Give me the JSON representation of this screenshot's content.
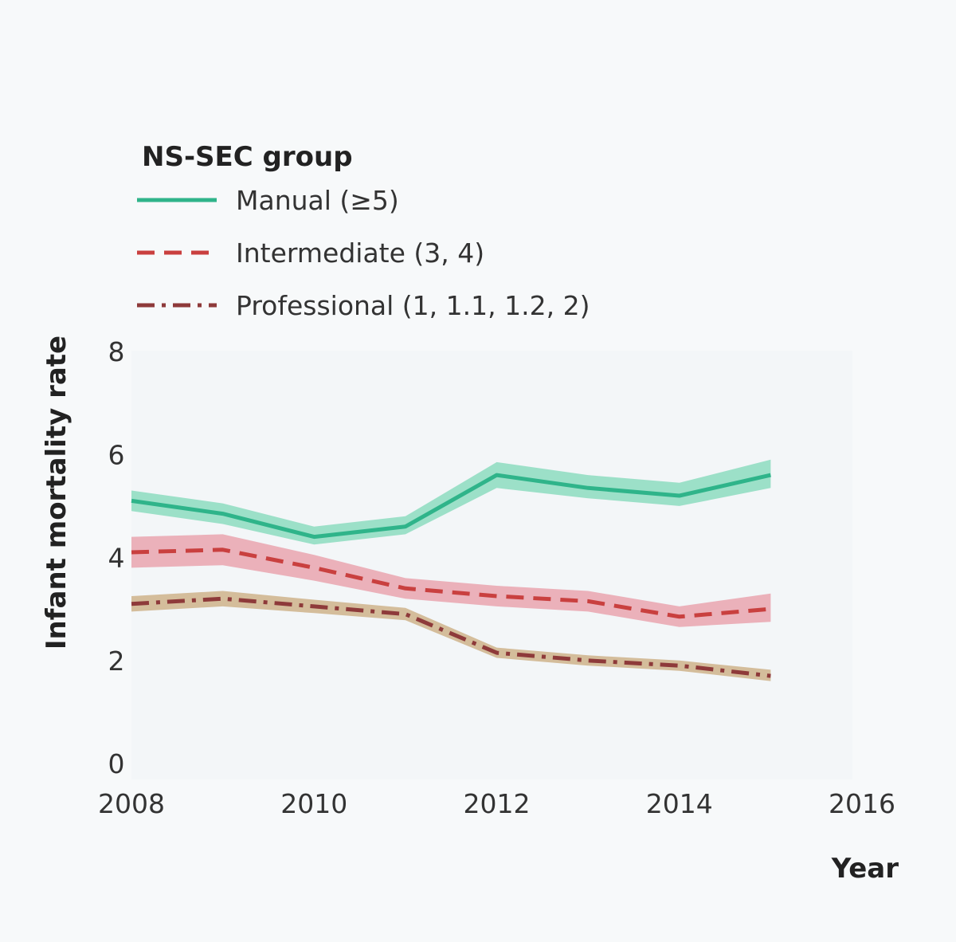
{
  "chart_data": {
    "type": "line",
    "xlabel": "Year",
    "ylabel": "Infant mortality rate",
    "xlim": [
      2008,
      2016
    ],
    "ylim": [
      0,
      8
    ],
    "x_ticks": [
      "2008",
      "2010",
      "2012",
      "2014",
      "2016"
    ],
    "y_ticks": [
      "0",
      "2",
      "4",
      "6",
      "8"
    ],
    "legend": {
      "title": "NS-SEC group",
      "position": "top-left"
    },
    "x": [
      2008,
      2009,
      2010,
      2011,
      2012,
      2013,
      2014,
      2015
    ],
    "series": [
      {
        "name": "Manual (≥5)",
        "style": "solid",
        "color": "#2fb48a",
        "band_color": "#7fd8b8",
        "values": [
          5.1,
          4.85,
          4.4,
          4.6,
          5.6,
          5.35,
          5.2,
          5.6
        ],
        "lower": [
          4.9,
          4.65,
          4.25,
          4.45,
          5.35,
          5.15,
          5.0,
          5.35
        ],
        "upper": [
          5.3,
          5.05,
          4.6,
          4.8,
          5.85,
          5.6,
          5.45,
          5.9
        ]
      },
      {
        "name": "Intermediate (3, 4)",
        "style": "dashed",
        "color": "#c9403f",
        "band_color": "#e89aa6",
        "values": [
          4.1,
          4.15,
          3.8,
          3.4,
          3.25,
          3.15,
          2.85,
          3.0
        ],
        "lower": [
          3.8,
          3.85,
          3.55,
          3.2,
          3.05,
          2.95,
          2.65,
          2.75
        ],
        "upper": [
          4.4,
          4.45,
          4.05,
          3.6,
          3.45,
          3.35,
          3.05,
          3.3
        ]
      },
      {
        "name": "Professional (1, 1.1, 1.2, 2)",
        "style": "dashdot",
        "color": "#8e3a3a",
        "band_color": "#c9aa7c",
        "values": [
          3.1,
          3.2,
          3.05,
          2.9,
          2.15,
          2.0,
          1.9,
          1.7
        ],
        "lower": [
          2.95,
          3.05,
          2.92,
          2.78,
          2.05,
          1.9,
          1.8,
          1.6
        ],
        "upper": [
          3.25,
          3.35,
          3.18,
          3.02,
          2.25,
          2.1,
          2.0,
          1.82
        ]
      }
    ]
  }
}
